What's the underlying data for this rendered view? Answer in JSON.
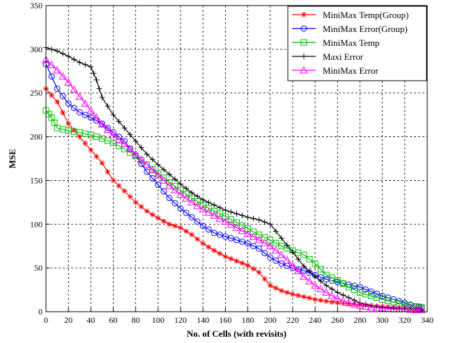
{
  "chart_data": {
    "type": "line",
    "xlabel": "No. of Cells (with revisits)",
    "ylabel": "MSE",
    "xlim": [
      0,
      340
    ],
    "ylim": [
      0,
      350
    ],
    "xticks": [
      0,
      20,
      40,
      60,
      80,
      100,
      120,
      140,
      160,
      180,
      200,
      220,
      240,
      260,
      280,
      300,
      320,
      340
    ],
    "yticks": [
      0,
      50,
      100,
      150,
      200,
      250,
      300,
      350
    ],
    "grid": true,
    "legend_position": "top-right",
    "series": [
      {
        "name": "MiniMax Temp(Group)",
        "color": "#ff0000",
        "marker": "star",
        "x": [
          0,
          10,
          20,
          30,
          40,
          50,
          60,
          70,
          80,
          90,
          100,
          110,
          120,
          130,
          140,
          150,
          160,
          170,
          180,
          190,
          200,
          210,
          220,
          230,
          240,
          250,
          260,
          270,
          280,
          290,
          300,
          310,
          320,
          330,
          335
        ],
        "y": [
          255,
          240,
          215,
          200,
          185,
          170,
          150,
          138,
          125,
          115,
          107,
          100,
          96,
          88,
          78,
          70,
          63,
          58,
          53,
          45,
          30,
          24,
          20,
          17,
          14,
          12,
          10,
          9,
          8,
          7,
          6,
          5,
          4,
          3,
          2
        ]
      },
      {
        "name": "MiniMax Error(Group)",
        "color": "#0000ff",
        "marker": "circle",
        "x": [
          0,
          10,
          20,
          30,
          40,
          50,
          60,
          70,
          80,
          90,
          100,
          110,
          120,
          130,
          140,
          150,
          160,
          170,
          180,
          190,
          200,
          210,
          220,
          230,
          240,
          250,
          260,
          270,
          280,
          290,
          300,
          310,
          320,
          330,
          335
        ],
        "y": [
          283,
          255,
          238,
          228,
          222,
          215,
          205,
          195,
          178,
          160,
          145,
          130,
          118,
          108,
          98,
          90,
          86,
          82,
          78,
          72,
          62,
          55,
          50,
          47,
          42,
          37,
          34,
          31,
          28,
          23,
          18,
          14,
          10,
          6,
          4
        ]
      },
      {
        "name": "MiniMax Temp",
        "color": "#00bb00",
        "marker": "square",
        "x": [
          0,
          5,
          10,
          20,
          30,
          40,
          50,
          60,
          70,
          80,
          90,
          100,
          110,
          120,
          130,
          140,
          150,
          160,
          170,
          180,
          190,
          200,
          210,
          220,
          230,
          240,
          250,
          260,
          270,
          280,
          290,
          300,
          310,
          320,
          330,
          335
        ],
        "y": [
          230,
          222,
          210,
          207,
          205,
          202,
          198,
          193,
          186,
          178,
          168,
          158,
          148,
          139,
          130,
          122,
          115,
          109,
          102,
          95,
          88,
          82,
          75,
          70,
          65,
          55,
          42,
          36,
          28,
          22,
          18,
          14,
          11,
          8,
          6,
          5
        ]
      },
      {
        "name": "Maxi Error",
        "color": "#000000",
        "marker": "plus",
        "x": [
          0,
          10,
          20,
          30,
          40,
          45,
          50,
          60,
          70,
          80,
          90,
          100,
          110,
          120,
          130,
          140,
          150,
          160,
          170,
          180,
          190,
          200,
          210,
          220,
          230,
          240,
          250,
          260,
          270,
          280,
          290,
          300,
          310,
          320,
          330,
          335
        ],
        "y": [
          302,
          298,
          292,
          285,
          280,
          265,
          245,
          225,
          210,
          195,
          180,
          168,
          157,
          146,
          136,
          128,
          122,
          116,
          112,
          108,
          105,
          100,
          84,
          68,
          52,
          40,
          30,
          22,
          16,
          10,
          7,
          5,
          4,
          3,
          2,
          2
        ]
      },
      {
        "name": "MiniMax Error",
        "color": "#ff00ff",
        "marker": "triangle",
        "x": [
          0,
          10,
          20,
          30,
          40,
          50,
          60,
          70,
          80,
          90,
          100,
          110,
          120,
          130,
          140,
          150,
          160,
          170,
          180,
          190,
          200,
          210,
          220,
          230,
          240,
          250,
          260,
          270,
          280,
          290,
          300,
          310,
          320,
          330,
          335
        ],
        "y": [
          288,
          276,
          262,
          246,
          230,
          214,
          202,
          192,
          180,
          168,
          156,
          144,
          134,
          125,
          117,
          110,
          103,
          96,
          89,
          82,
          75,
          65,
          53,
          40,
          30,
          22,
          15,
          10,
          7,
          5,
          4,
          3,
          3,
          2,
          2
        ]
      }
    ]
  }
}
